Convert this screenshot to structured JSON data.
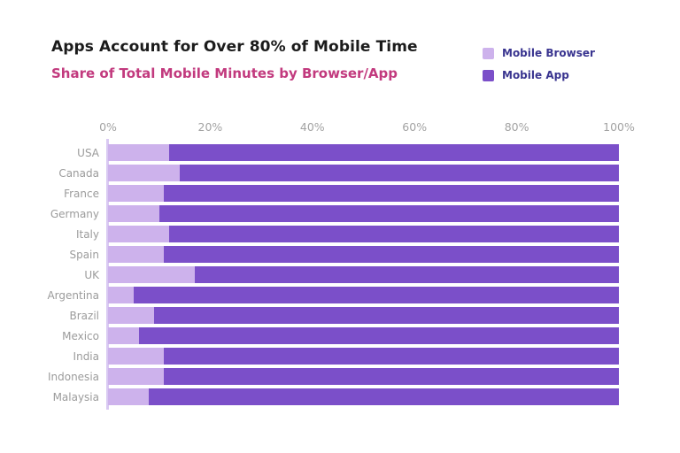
{
  "header": {
    "title": "Apps Account for Over 80% of Mobile Time",
    "subtitle": "Share of Total Mobile Minutes by Browser/App"
  },
  "legend": {
    "position": "top-right",
    "items": [
      {
        "label": "Mobile Browser",
        "color": "#cdb2ec"
      },
      {
        "label": "Mobile App",
        "color": "#7b4fc9"
      }
    ]
  },
  "colors": {
    "background": "#ffffff",
    "title": "#1b1b1b",
    "subtitle": "#c23a7e",
    "category_label": "#9b9b9b",
    "tick_label": "#a3a3a3",
    "legend_text": "#3a3590",
    "axis_line": "#d9c9f2",
    "mobile_browser": "#cdb2ec",
    "mobile_app": "#7b4fc9"
  },
  "chart_data": {
    "type": "bar",
    "orientation": "horizontal",
    "stacked": true,
    "title": "Apps Account for Over 80% of Mobile Time",
    "subtitle": "Share of Total Mobile Minutes by Browser/App",
    "categories": [
      "USA",
      "Canada",
      "France",
      "Germany",
      "Italy",
      "Spain",
      "UK",
      "Argentina",
      "Brazil",
      "Mexico",
      "India",
      "Indonesia",
      "Malaysia"
    ],
    "series": [
      {
        "name": "Mobile Browser",
        "color": "#cdb2ec",
        "values": [
          12,
          14,
          11,
          10,
          12,
          11,
          17,
          5,
          9,
          6,
          11,
          11,
          8
        ]
      },
      {
        "name": "Mobile App",
        "color": "#7b4fc9",
        "values": [
          88,
          86,
          89,
          90,
          88,
          89,
          83,
          95,
          91,
          94,
          89,
          89,
          92
        ]
      }
    ],
    "unit": "%",
    "xlabel": "",
    "ylabel": "",
    "xlim": [
      0,
      100
    ],
    "x_ticks": [
      "0%",
      "20%",
      "40%",
      "60%",
      "80%",
      "100%"
    ],
    "grid": false,
    "legend_position": "top-right"
  }
}
